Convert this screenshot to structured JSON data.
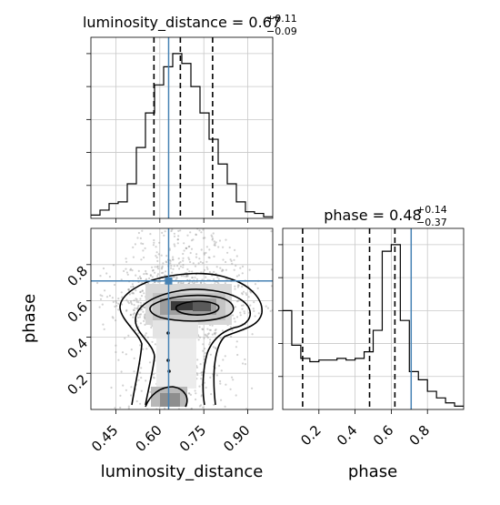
{
  "chart_data": {
    "type": "corner",
    "parameters": [
      "luminosity_distance",
      "phase"
    ],
    "axis_labels": {
      "x_left": "luminosity_distance",
      "x_right": "phase",
      "y_left": "phase"
    },
    "truth": {
      "luminosity_distance": 0.63,
      "phase": 0.71
    },
    "colors": {
      "truth": "#4682b4",
      "hist": "#000000",
      "scatter": "#888888"
    },
    "panels": [
      {
        "id": "luminosity_distance_hist",
        "title": {
          "base": "luminosity_distance = 0.67",
          "sup": "+0.11",
          "sub": "−0.09"
        },
        "type": "step-histogram",
        "xlim": [
          0.365,
          0.985
        ],
        "x_ticks": [
          0.45,
          0.6,
          0.75,
          0.9
        ],
        "bin_edges": [
          0.365,
          0.396,
          0.427,
          0.458,
          0.489,
          0.52,
          0.551,
          0.582,
          0.613,
          0.644,
          0.675,
          0.706,
          0.737,
          0.768,
          0.799,
          0.83,
          0.861,
          0.892,
          0.923,
          0.954,
          0.985
        ],
        "heights": [
          0.02,
          0.05,
          0.09,
          0.1,
          0.21,
          0.43,
          0.64,
          0.81,
          0.92,
          1.0,
          0.94,
          0.8,
          0.64,
          0.48,
          0.33,
          0.21,
          0.1,
          0.04,
          0.03,
          0.01
        ],
        "quantile_lines": [
          0.58,
          0.67,
          0.78
        ]
      },
      {
        "id": "phase_hist",
        "title": {
          "base": "phase = 0.48",
          "sup": "+0.14",
          "sub": "−0.37"
        },
        "type": "step-histogram",
        "xlim": [
          0.0,
          1.0
        ],
        "x_ticks": [
          0.2,
          0.4,
          0.6,
          0.8
        ],
        "x_tick_labels": [
          "0.2",
          "0.4",
          "0.6",
          "0.8"
        ],
        "bin_edges": [
          0.0,
          0.05,
          0.1,
          0.15,
          0.2,
          0.25,
          0.3,
          0.35,
          0.4,
          0.45,
          0.5,
          0.55,
          0.6,
          0.65,
          0.7,
          0.75,
          0.8,
          0.85,
          0.9,
          0.95,
          1.0
        ],
        "heights": [
          0.6,
          0.39,
          0.31,
          0.29,
          0.3,
          0.3,
          0.31,
          0.3,
          0.31,
          0.35,
          0.48,
          0.96,
          1.0,
          0.54,
          0.23,
          0.18,
          0.11,
          0.07,
          0.04,
          0.02
        ],
        "quantile_lines": [
          0.11,
          0.48,
          0.62
        ]
      },
      {
        "id": "phase_vs_luminosity_distance",
        "type": "2d-density",
        "xlim": [
          0.365,
          0.985
        ],
        "ylim": [
          0.0,
          1.0
        ],
        "x_ticks": [
          0.45,
          0.6,
          0.75,
          0.9
        ],
        "x_tick_labels": [
          "0.45",
          "0.60",
          "0.75",
          "0.90"
        ],
        "y_ticks": [
          0.2,
          0.4,
          0.6,
          0.8
        ],
        "y_tick_labels": [
          "0.2",
          "0.4",
          "0.6",
          "0.8"
        ]
      }
    ]
  }
}
